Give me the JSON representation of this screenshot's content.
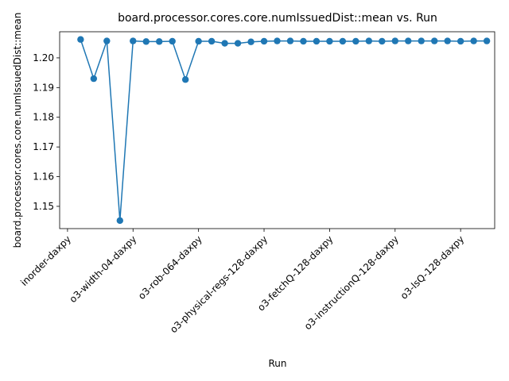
{
  "chart_data": {
    "type": "line",
    "title": "board.processor.cores.core.numIssuedDist::mean vs. Run",
    "xlabel": "Run",
    "ylabel": "board.processor.cores.core.numIssuedDist::mean",
    "ylim": [
      1.1425,
      1.2088
    ],
    "yticks": [
      1.15,
      1.16,
      1.17,
      1.18,
      1.19,
      1.2
    ],
    "ytick_labels": [
      "1.15",
      "1.16",
      "1.17",
      "1.18",
      "1.19",
      "1.20"
    ],
    "xtick_labels": [
      "inorder-daxpy",
      "o3-width-04-daxpy",
      "o3-rob-064-daxpy",
      "o3-physical-regs-128-daxpy",
      "o3-fetchQ-128-daxpy",
      "o3-instructionQ-128-daxpy",
      "o3-lsQ-128-daxpy"
    ],
    "xtick_positions": [
      0,
      5,
      10,
      15,
      20,
      25,
      30
    ],
    "grid": false,
    "color": "#1f77b4",
    "x": [
      1,
      2,
      3,
      4,
      5,
      6,
      7,
      8,
      9,
      10,
      11,
      12,
      13,
      14,
      15,
      16,
      17,
      18,
      19,
      20,
      21,
      22,
      23,
      24,
      25,
      26,
      27,
      28,
      29,
      30,
      31,
      32
    ],
    "values": [
      1.2062,
      1.193,
      1.2057,
      1.1452,
      1.2057,
      1.2055,
      1.2055,
      1.2056,
      1.1927,
      1.2056,
      1.2056,
      1.2049,
      1.2049,
      1.2054,
      1.2056,
      1.2057,
      1.2057,
      1.2056,
      1.2056,
      1.2056,
      1.2056,
      1.2056,
      1.2057,
      1.2056,
      1.2057,
      1.2057,
      1.2057,
      1.2057,
      1.2057,
      1.2056,
      1.2057,
      1.2057
    ]
  }
}
